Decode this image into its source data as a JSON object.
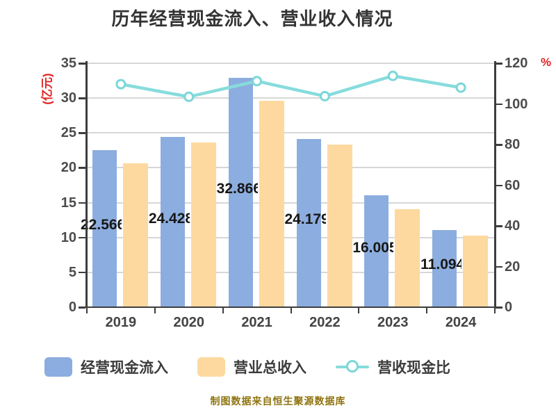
{
  "title": "历年经营现金流入、营业收入情况",
  "footer": "制图数据来自恒生聚源数据库",
  "axes": {
    "left_title": "(亿元)",
    "right_title": "%",
    "left_ticks": [
      "0",
      "5",
      "10",
      "15",
      "20",
      "25",
      "30",
      "35"
    ],
    "right_ticks": [
      "0",
      "20",
      "40",
      "60",
      "80",
      "100",
      "120"
    ]
  },
  "legend": {
    "items": [
      {
        "label": "经营现金流入",
        "type": "bar",
        "color": "#8caddf"
      },
      {
        "label": "营业总收入",
        "type": "bar",
        "color": "#fdd9a0"
      },
      {
        "label": "营收现金比",
        "type": "line",
        "color": "#87dcdc"
      }
    ]
  },
  "colors": {
    "bar_cash": "#8caddf",
    "bar_revenue": "#fdd9a0",
    "ratio_line": "#87dcdc",
    "marker_ring": "#7ad7d9",
    "axis_title_red": "#e02222",
    "footer_text": "#8f7410",
    "gridline": "#d7d7d7",
    "axis_spine": "#3d3d3d"
  },
  "chart_data": {
    "type": "bar",
    "subtype": "grouped bars with overlay line (dual y-axis)",
    "title": "历年经营现金流入、营业收入情况",
    "categories": [
      "2019",
      "2020",
      "2021",
      "2022",
      "2023",
      "2024"
    ],
    "series": [
      {
        "name": "经营现金流入",
        "type": "bar",
        "axis": "left",
        "unit": "亿元",
        "values": [
          22.566,
          24.428,
          32.866,
          24.179,
          16.005,
          11.094
        ]
      },
      {
        "name": "营业总收入",
        "type": "bar",
        "axis": "left",
        "unit": "亿元",
        "values": [
          20.6,
          23.6,
          29.6,
          23.3,
          14.1,
          10.3
        ],
        "estimated": true
      },
      {
        "name": "营收现金比",
        "type": "line",
        "axis": "right",
        "unit": "%",
        "values": [
          109.7,
          103.5,
          111.2,
          103.8,
          113.8,
          108.0
        ],
        "estimated": true
      }
    ],
    "bar_labels": [
      "22.566",
      "24.428",
      "32.866",
      "24.179",
      "16.005",
      "11.094"
    ],
    "left_axis": {
      "title": "(亿元)",
      "min": 0,
      "max": 35,
      "tick_step": 5
    },
    "right_axis": {
      "title": "%",
      "min": 0,
      "max": 120,
      "tick_step": 20
    },
    "grid": true,
    "legend_position": "bottom",
    "xlabel": "",
    "ylabel": "(亿元)"
  }
}
